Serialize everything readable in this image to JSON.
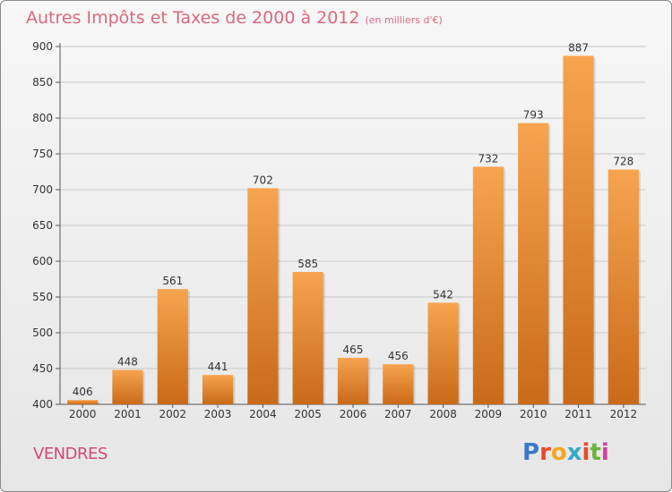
{
  "header": {
    "title": "Autres Impôts et Taxes de 2000 à 2012",
    "unit": "(en milliers d'€)"
  },
  "footer": {
    "city": "VENDRES",
    "logo_letters": [
      "P",
      "r",
      "o",
      "x",
      "i",
      "t",
      "i"
    ],
    "logo_colors": [
      "#3a78c8",
      "#e84b2b",
      "#f2a623",
      "#36a8c8",
      "#e84b2b",
      "#6cb33e",
      "#d640a0"
    ]
  },
  "colors": {
    "bar_light": "#f7a44f",
    "bar_dark": "#c96a18",
    "grid": "#c8c8c8",
    "title": "#d86a7d",
    "city": "#d0497a"
  },
  "chart_data": {
    "type": "bar",
    "title": "Autres Impôts et Taxes de 2000 à 2012",
    "subtitle": "(en milliers d'€)",
    "categories": [
      "2000",
      "2001",
      "2002",
      "2003",
      "2004",
      "2005",
      "2006",
      "2007",
      "2008",
      "2009",
      "2010",
      "2011",
      "2012"
    ],
    "values": [
      406,
      448,
      561,
      441,
      702,
      585,
      465,
      456,
      542,
      732,
      793,
      887,
      728
    ],
    "ylim": [
      400,
      900
    ],
    "yticks": [
      400,
      450,
      500,
      550,
      600,
      650,
      700,
      750,
      800,
      850,
      900
    ],
    "grid": true,
    "xlabel": "",
    "ylabel": ""
  }
}
